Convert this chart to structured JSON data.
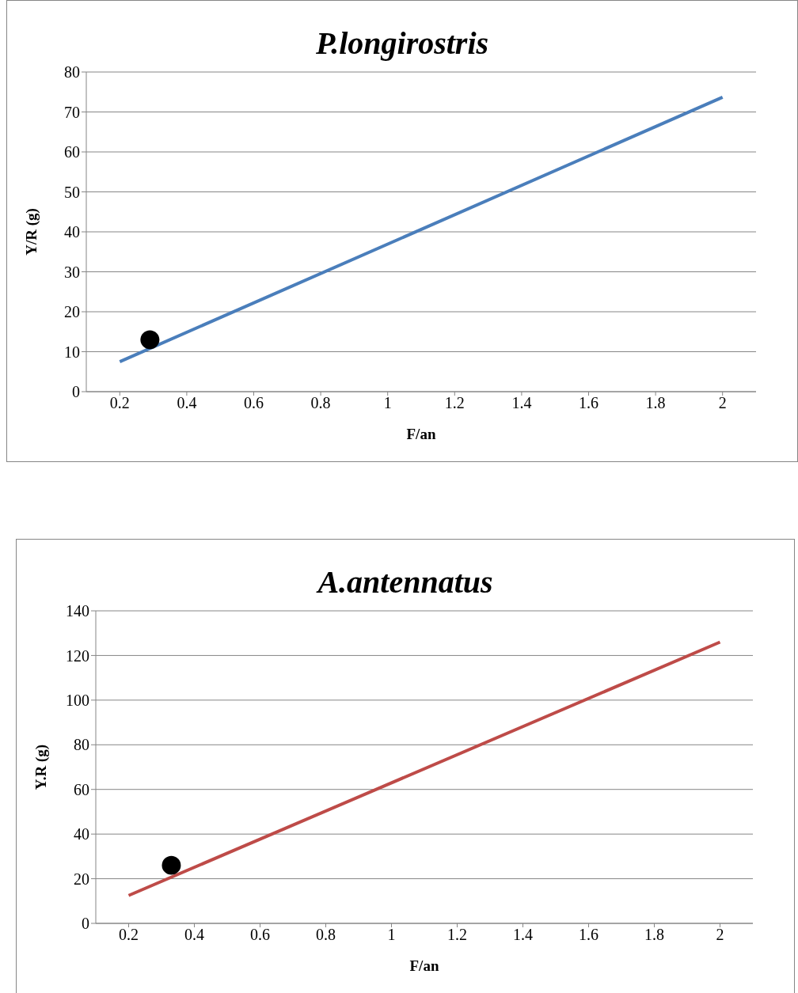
{
  "chart_data": [
    {
      "type": "line",
      "title": "P.longirostris",
      "xlabel": "F/an",
      "ylabel": "Y/R (g)",
      "xlim": [
        0.1,
        2.1
      ],
      "xticks": [
        0.2,
        0.4,
        0.6,
        0.8,
        1,
        1.2,
        1.4,
        1.6,
        1.8,
        2
      ],
      "ylim": [
        0,
        80
      ],
      "yticks": [
        0,
        10,
        20,
        30,
        40,
        50,
        60,
        70,
        80
      ],
      "grid": "y",
      "series": [
        {
          "type": "line",
          "color": "#4a7ebb",
          "marker": "none",
          "x": [
            0.2,
            2
          ],
          "values": [
            7.5,
            73.7
          ]
        },
        {
          "type": "scatter",
          "color": "#000000",
          "marker": "circle",
          "x": [
            0.29
          ],
          "values": [
            13
          ]
        }
      ]
    },
    {
      "type": "line",
      "title": "A.antennatus",
      "xlabel": "F/an",
      "ylabel": "Y.R (g)",
      "xlim": [
        0.1,
        2.1
      ],
      "xticks": [
        0.2,
        0.4,
        0.6,
        0.8,
        1,
        1.2,
        1.4,
        1.6,
        1.8,
        2
      ],
      "ylim": [
        0,
        140
      ],
      "yticks": [
        0,
        20,
        40,
        60,
        80,
        100,
        120,
        140
      ],
      "grid": "y",
      "series": [
        {
          "type": "line",
          "color": "#be4b48",
          "marker": "none",
          "x": [
            0.2,
            2
          ],
          "values": [
            12.5,
            126
          ]
        },
        {
          "type": "scatter",
          "color": "#000000",
          "marker": "circle",
          "x": [
            0.33
          ],
          "values": [
            26
          ]
        }
      ]
    }
  ]
}
